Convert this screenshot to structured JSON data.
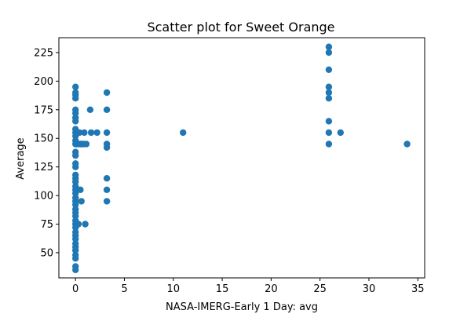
{
  "chart_data": {
    "type": "scatter",
    "title": "Scatter plot for Sweet Orange",
    "xlabel": "NASA-IMERG-Early 1 Day: avg",
    "ylabel": "Average",
    "xlim": [
      -1.7,
      35.7
    ],
    "ylim": [
      28,
      238
    ],
    "xticks": [
      0,
      5,
      10,
      15,
      20,
      25,
      30,
      35
    ],
    "yticks": [
      50,
      75,
      100,
      125,
      150,
      175,
      200,
      225
    ],
    "grid": false,
    "marker_color": "#1f77b4",
    "series": [
      {
        "points": [
          [
            0,
            35
          ],
          [
            0,
            38
          ],
          [
            0,
            45
          ],
          [
            0,
            48
          ],
          [
            0,
            52
          ],
          [
            0,
            55
          ],
          [
            0,
            58
          ],
          [
            0,
            62
          ],
          [
            0,
            65
          ],
          [
            0,
            68
          ],
          [
            0,
            72
          ],
          [
            0,
            75
          ],
          [
            0,
            78
          ],
          [
            0,
            82
          ],
          [
            0,
            85
          ],
          [
            0,
            88
          ],
          [
            0,
            92
          ],
          [
            0,
            95
          ],
          [
            0,
            98
          ],
          [
            0,
            102
          ],
          [
            0,
            105
          ],
          [
            0,
            108
          ],
          [
            0,
            112
          ],
          [
            0,
            115
          ],
          [
            0,
            118
          ],
          [
            0,
            125
          ],
          [
            0,
            128
          ],
          [
            0,
            135
          ],
          [
            0,
            138
          ],
          [
            0,
            145
          ],
          [
            0,
            148
          ],
          [
            0,
            152
          ],
          [
            0,
            155
          ],
          [
            0,
            158
          ],
          [
            0,
            165
          ],
          [
            0,
            168
          ],
          [
            0,
            172
          ],
          [
            0,
            175
          ],
          [
            0,
            185
          ],
          [
            0,
            188
          ],
          [
            0,
            190
          ],
          [
            0,
            195
          ],
          [
            0.1,
            75
          ],
          [
            0.1,
            145
          ],
          [
            0.2,
            105
          ],
          [
            0.3,
            75
          ],
          [
            0.3,
            145
          ],
          [
            0.4,
            155
          ],
          [
            0.5,
            145
          ],
          [
            0.5,
            105
          ],
          [
            0.6,
            95
          ],
          [
            0.6,
            145
          ],
          [
            0.8,
            145
          ],
          [
            0.9,
            155
          ],
          [
            1.1,
            145
          ],
          [
            1.0,
            75
          ],
          [
            1.5,
            175
          ],
          [
            1.6,
            155
          ],
          [
            2.2,
            155
          ],
          [
            3.2,
            95
          ],
          [
            3.2,
            105
          ],
          [
            3.2,
            115
          ],
          [
            3.2,
            142
          ],
          [
            3.2,
            145
          ],
          [
            3.2,
            155
          ],
          [
            3.2,
            175
          ],
          [
            3.2,
            190
          ],
          [
            11.0,
            155
          ],
          [
            25.9,
            145
          ],
          [
            25.9,
            155
          ],
          [
            25.9,
            165
          ],
          [
            25.9,
            185
          ],
          [
            25.9,
            190
          ],
          [
            25.9,
            195
          ],
          [
            25.9,
            210
          ],
          [
            25.9,
            225
          ],
          [
            25.9,
            230
          ],
          [
            27.1,
            155
          ],
          [
            33.9,
            145
          ]
        ]
      }
    ]
  }
}
